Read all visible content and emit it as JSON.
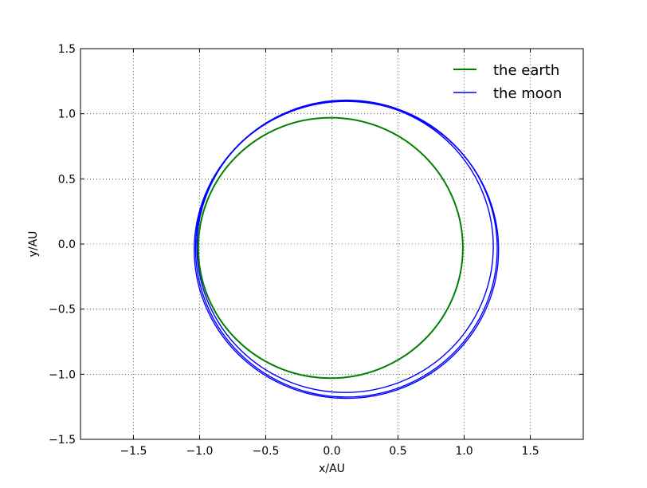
{
  "chart_data": {
    "type": "line",
    "xlabel": "x/AU",
    "ylabel": "y/AU",
    "xlim": [
      -1.9,
      1.9
    ],
    "ylim": [
      -1.5,
      1.5
    ],
    "xticks": [
      -1.5,
      -1.0,
      -0.5,
      0.0,
      0.5,
      1.0,
      1.5
    ],
    "yticks": [
      -1.5,
      -1.0,
      -0.5,
      0.0,
      0.5,
      1.0,
      1.5
    ],
    "xtick_labels": [
      "−1.5",
      "−1.0",
      "−0.5",
      "0.0",
      "0.5",
      "1.0",
      "1.5"
    ],
    "ytick_labels": [
      "−1.5",
      "−1.0",
      "−0.5",
      "0.0",
      "0.5",
      "1.0",
      "1.5"
    ],
    "grid": true,
    "legend_position": "top-right",
    "series": [
      {
        "name": "the earth",
        "color": "#008000",
        "orbits": [
          {
            "cx": -0.01,
            "cy": -0.03,
            "rx": 1.0,
            "ry": 1.0
          }
        ]
      },
      {
        "name": "the moon",
        "color": "#0000ff",
        "orbits": [
          {
            "cx": 0.1,
            "cy": -0.02,
            "rx": 1.12,
            "ry": 1.12
          },
          {
            "cx": 0.11,
            "cy": -0.035,
            "rx": 1.14,
            "ry": 1.14
          },
          {
            "cx": 0.11,
            "cy": -0.045,
            "rx": 1.15,
            "ry": 1.14
          }
        ]
      }
    ]
  }
}
